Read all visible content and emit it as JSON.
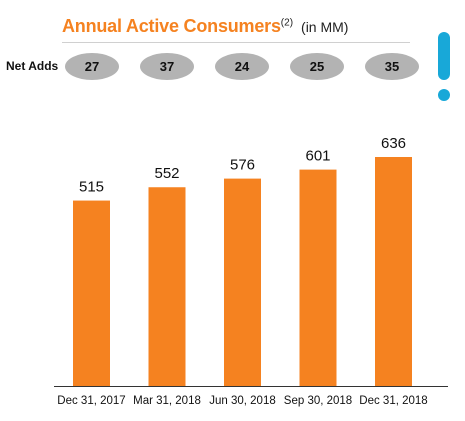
{
  "header": {
    "title": "Annual Active Consumers",
    "footnote": "(2)",
    "unit": "(in MM)"
  },
  "net_adds": {
    "label": "Net Adds",
    "values": [
      "27",
      "37",
      "24",
      "25",
      "35"
    ]
  },
  "colors": {
    "bar": "#f58220",
    "title": "#f58220",
    "pill": "#b3b3b3",
    "accent": "#18a8d8"
  },
  "chart_data": {
    "type": "bar",
    "title": "Annual Active Consumers (in MM)",
    "categories": [
      "Dec 31, 2017",
      "Mar 31, 2018",
      "Jun 30, 2018",
      "Sep 30, 2018",
      "Dec 31, 2018"
    ],
    "values": [
      515,
      552,
      576,
      601,
      636
    ],
    "data_labels": [
      "515",
      "552",
      "576",
      "601",
      "636"
    ],
    "grid": false,
    "legend": "none"
  }
}
